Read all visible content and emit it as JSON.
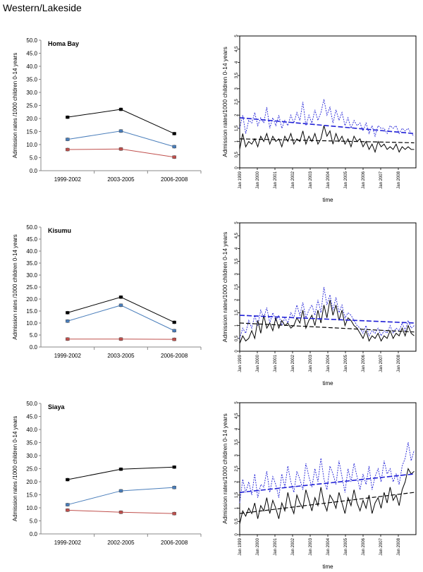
{
  "page": {
    "title": "Western/Lakeside"
  },
  "left_common": {
    "ylabel": "Admission rates /1000 children 0-14 years",
    "yticks": [
      "0.0",
      "5.0",
      "10.0",
      "15.0",
      "20.0",
      "25.0",
      "30.0",
      "35.0",
      "40.0",
      "45.0",
      "50.0"
    ],
    "series_colors": [
      "#000000",
      "#4a7ebb",
      "#c0504d"
    ]
  },
  "right_common": {
    "ylabel": "Admission rates/1000 children 0-14 years",
    "xlabel": "time",
    "yticks": [
      "0",
      "0.5",
      "1",
      "1.5",
      "2",
      "2.5",
      "3",
      "3.5",
      "4",
      "4.5",
      "5"
    ],
    "xticks": [
      "Jan 1999",
      "Jan 2000",
      "Jan 2001",
      "Jan 2002",
      "Jan 2003",
      "Jan 2004",
      "Jan 2005",
      "Jan 2006",
      "Jan 2007",
      "Jan 2008"
    ],
    "colors": {
      "black": "#000000",
      "blue": "#1f1fd6"
    }
  },
  "chart_data": [
    {
      "type": "line",
      "title": "Homa Bay",
      "categories": [
        "1999-2002",
        "2003-2005",
        "2006-2008"
      ],
      "ylim": [
        0,
        50
      ],
      "series": [
        {
          "name": "total",
          "values": [
            20.5,
            23.5,
            14.2
          ]
        },
        {
          "name": "blue",
          "values": [
            12.0,
            15.2,
            9.2
          ]
        },
        {
          "name": "red",
          "values": [
            8.1,
            8.3,
            5.2
          ]
        }
      ]
    },
    {
      "type": "line",
      "title": "",
      "xlim": [
        1999,
        2009
      ],
      "ylim": [
        0,
        5
      ],
      "series": [
        {
          "name": "black_observed",
          "values": [
            0.7,
            1.3,
            0.8,
            1.0,
            0.9,
            1.1,
            0.8,
            1.2,
            1.0,
            1.3,
            0.9,
            1.2,
            1.0,
            1.1,
            0.8,
            1.2,
            1.0,
            1.3,
            0.9,
            1.1,
            1.0,
            1.4,
            0.9,
            1.2,
            1.0,
            1.3,
            0.9,
            1.1,
            1.6,
            1.2,
            1.4,
            0.9,
            1.3,
            1.0,
            1.2,
            0.9,
            1.1,
            0.8,
            1.2,
            1.0,
            1.1,
            0.8,
            1.0,
            0.7,
            0.9,
            0.6,
            1.0,
            0.8,
            0.9,
            0.7,
            0.8,
            0.7,
            0.9,
            0.6,
            0.8,
            0.7,
            0.8,
            0.7,
            0.7
          ]
        },
        {
          "name": "blue_observed",
          "values": [
            1.5,
            2.0,
            1.3,
            1.8,
            1.7,
            2.1,
            1.6,
            1.9,
            1.7,
            2.3,
            1.5,
            1.9,
            1.6,
            2.0,
            1.5,
            1.8,
            1.6,
            2.0,
            1.7,
            2.1,
            1.8,
            2.5,
            1.6,
            2.0,
            1.7,
            2.2,
            1.8,
            2.1,
            2.6,
            2.0,
            2.3,
            1.7,
            2.2,
            1.8,
            2.1,
            1.6,
            1.9,
            1.5,
            1.8,
            1.6,
            1.7,
            1.4,
            1.7,
            1.3,
            1.6,
            1.2,
            1.6,
            1.5,
            1.5,
            1.3,
            1.6,
            1.5,
            1.6,
            1.3,
            1.5,
            1.4,
            1.5,
            1.3,
            1.2
          ]
        },
        {
          "name": "black_trend",
          "values": [
            1.1,
            0.95
          ]
        },
        {
          "name": "blue_trend",
          "values": [
            1.9,
            1.3
          ]
        }
      ]
    },
    {
      "type": "line",
      "title": "Kisumu",
      "categories": [
        "1999-2002",
        "2003-2005",
        "2006-2008"
      ],
      "ylim": [
        0,
        50
      ],
      "series": [
        {
          "name": "total",
          "values": [
            14.3,
            20.8,
            10.3
          ]
        },
        {
          "name": "blue",
          "values": [
            10.8,
            17.4,
            6.8
          ]
        },
        {
          "name": "red",
          "values": [
            3.3,
            3.3,
            3.2
          ]
        }
      ]
    },
    {
      "type": "line",
      "title": "",
      "xlim": [
        1999,
        2009
      ],
      "ylim": [
        0,
        5
      ],
      "series": [
        {
          "name": "black_observed",
          "values": [
            0.3,
            0.6,
            0.4,
            0.5,
            0.8,
            0.5,
            1.2,
            0.7,
            1.4,
            0.9,
            1.1,
            0.8,
            1.3,
            0.9,
            1.2,
            1.0,
            1.1,
            0.9,
            1.0,
            1.3,
            1.1,
            1.6,
            0.9,
            1.2,
            1.4,
            1.0,
            1.6,
            1.1,
            1.8,
            1.3,
            2.0,
            1.4,
            1.8,
            1.2,
            1.6,
            1.0,
            1.3,
            1.2,
            1.0,
            0.9,
            0.7,
            0.5,
            0.8,
            0.4,
            0.6,
            0.5,
            0.7,
            0.4,
            0.6,
            0.5,
            0.8,
            0.5,
            0.7,
            0.6,
            0.9,
            0.6,
            1.0,
            0.7,
            0.6
          ]
        },
        {
          "name": "blue_observed",
          "values": [
            0.5,
            0.9,
            0.7,
            1.2,
            0.9,
            1.4,
            1.0,
            1.6,
            1.3,
            1.7,
            1.1,
            1.5,
            1.2,
            1.4,
            1.0,
            1.3,
            1.1,
            1.5,
            1.3,
            1.8,
            1.4,
            1.9,
            1.3,
            1.6,
            1.8,
            1.4,
            2.0,
            1.5,
            2.5,
            1.8,
            2.2,
            1.6,
            2.1,
            1.5,
            1.8,
            1.3,
            1.5,
            1.4,
            1.2,
            1.0,
            0.9,
            0.7,
            1.0,
            0.6,
            0.8,
            0.7,
            0.9,
            0.6,
            0.8,
            0.7,
            1.0,
            0.7,
            0.9,
            0.8,
            1.1,
            0.8,
            1.2,
            0.9,
            1.0
          ]
        },
        {
          "name": "black_trend",
          "values": [
            1.1,
            0.75
          ]
        },
        {
          "name": "blue_trend",
          "values": [
            1.4,
            1.1
          ]
        }
      ]
    },
    {
      "type": "line",
      "title": "Siaya",
      "categories": [
        "1999-2002",
        "2002-2005",
        "2006-2008"
      ],
      "ylim": [
        0,
        50
      ],
      "series": [
        {
          "name": "total",
          "values": [
            20.8,
            24.8,
            25.6
          ]
        },
        {
          "name": "blue",
          "values": [
            11.2,
            16.5,
            17.8
          ]
        },
        {
          "name": "red",
          "values": [
            9.1,
            8.3,
            7.8
          ]
        }
      ]
    },
    {
      "type": "line",
      "title": "",
      "xlim": [
        1999,
        2009
      ],
      "ylim": [
        0,
        5
      ],
      "series": [
        {
          "name": "black_observed",
          "values": [
            0.4,
            0.9,
            0.7,
            1.0,
            0.8,
            1.2,
            0.6,
            1.1,
            0.9,
            1.4,
            0.8,
            1.3,
            1.0,
            0.6,
            1.2,
            0.9,
            1.6,
            1.1,
            0.8,
            1.5,
            1.2,
            1.0,
            1.7,
            1.3,
            0.9,
            1.4,
            1.1,
            1.8,
            1.2,
            0.9,
            1.5,
            1.3,
            1.0,
            1.6,
            1.2,
            0.8,
            1.4,
            1.1,
            1.7,
            1.2,
            0.9,
            1.3,
            1.0,
            1.5,
            0.8,
            1.2,
            1.4,
            1.0,
            1.6,
            1.2,
            1.8,
            1.3,
            1.5,
            1.1,
            1.7,
            2.0,
            2.5,
            2.3,
            2.4
          ]
        },
        {
          "name": "blue_observed",
          "values": [
            1.2,
            2.1,
            1.6,
            2.0,
            1.5,
            2.3,
            1.4,
            1.9,
            1.8,
            2.4,
            1.6,
            2.2,
            1.9,
            1.4,
            2.3,
            1.8,
            2.6,
            2.0,
            1.6,
            2.4,
            2.1,
            1.7,
            2.7,
            2.2,
            1.8,
            2.5,
            2.0,
            2.9,
            2.1,
            1.7,
            2.6,
            2.3,
            1.9,
            2.8,
            2.2,
            1.6,
            2.5,
            2.0,
            2.7,
            2.2,
            1.7,
            2.3,
            1.9,
            2.6,
            1.7,
            2.2,
            2.5,
            2.0,
            2.8,
            2.3,
            2.5,
            2.0,
            2.3,
            1.9,
            2.6,
            2.9,
            3.5,
            2.8,
            3.2
          ]
        },
        {
          "name": "black_trend",
          "values": [
            0.8,
            1.6
          ]
        },
        {
          "name": "blue_trend",
          "values": [
            1.6,
            2.3
          ]
        }
      ]
    }
  ]
}
